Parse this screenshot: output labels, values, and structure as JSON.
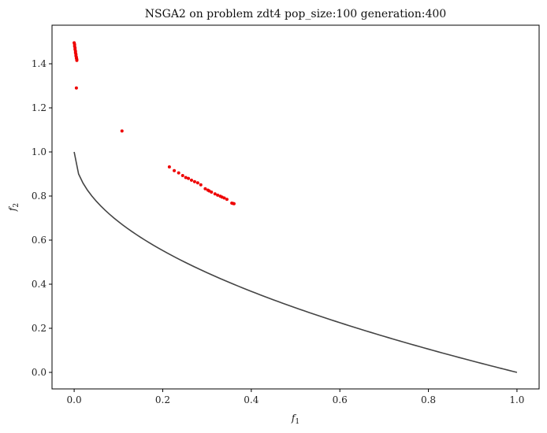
{
  "chart_data": {
    "type": "scatter",
    "title": "NSGA2 on problem zdt4 pop_size:100 generation:400",
    "xlabel": {
      "base": "f",
      "sub": "1"
    },
    "ylabel": {
      "base": "f",
      "sub": "2"
    },
    "xlim": [
      -0.05,
      1.05
    ],
    "ylim": [
      -0.075,
      1.575
    ],
    "x_ticks": [
      0.0,
      0.2,
      0.4,
      0.6,
      0.8,
      1.0
    ],
    "y_ticks": [
      0.0,
      0.2,
      0.4,
      0.6,
      0.8,
      1.0,
      1.2,
      1.4
    ],
    "x_tick_labels": [
      "0.0",
      "0.2",
      "0.4",
      "0.6",
      "0.8",
      "1.0"
    ],
    "y_tick_labels": [
      "0.0",
      "0.2",
      "0.4",
      "0.6",
      "0.8",
      "1.0",
      "1.2",
      "1.4"
    ],
    "grid": false,
    "series": [
      {
        "kind": "line",
        "color": "#444444",
        "formula": "y = 1 - sqrt(x)",
        "x_range": [
          0,
          1
        ]
      },
      {
        "kind": "scatter",
        "color": "#ee0000",
        "points": [
          [
            0.0,
            1.495
          ],
          [
            0.001,
            1.488
          ],
          [
            0.001,
            1.48
          ],
          [
            0.002,
            1.472
          ],
          [
            0.002,
            1.465
          ],
          [
            0.003,
            1.457
          ],
          [
            0.003,
            1.45
          ],
          [
            0.004,
            1.443
          ],
          [
            0.004,
            1.436
          ],
          [
            0.005,
            1.43
          ],
          [
            0.005,
            1.425
          ],
          [
            0.006,
            1.42
          ],
          [
            0.006,
            1.415
          ],
          [
            0.005,
            1.29
          ],
          [
            0.108,
            1.095
          ],
          [
            0.215,
            0.932
          ],
          [
            0.226,
            0.915
          ],
          [
            0.236,
            0.905
          ],
          [
            0.245,
            0.893
          ],
          [
            0.252,
            0.884
          ],
          [
            0.258,
            0.88
          ],
          [
            0.265,
            0.872
          ],
          [
            0.272,
            0.865
          ],
          [
            0.279,
            0.86
          ],
          [
            0.286,
            0.851
          ],
          [
            0.296,
            0.833
          ],
          [
            0.302,
            0.827
          ],
          [
            0.305,
            0.823
          ],
          [
            0.31,
            0.818
          ],
          [
            0.318,
            0.81
          ],
          [
            0.324,
            0.804
          ],
          [
            0.33,
            0.799
          ],
          [
            0.334,
            0.795
          ],
          [
            0.339,
            0.791
          ],
          [
            0.345,
            0.785
          ],
          [
            0.356,
            0.768
          ],
          [
            0.359,
            0.766
          ],
          [
            0.361,
            0.765
          ]
        ]
      }
    ]
  }
}
